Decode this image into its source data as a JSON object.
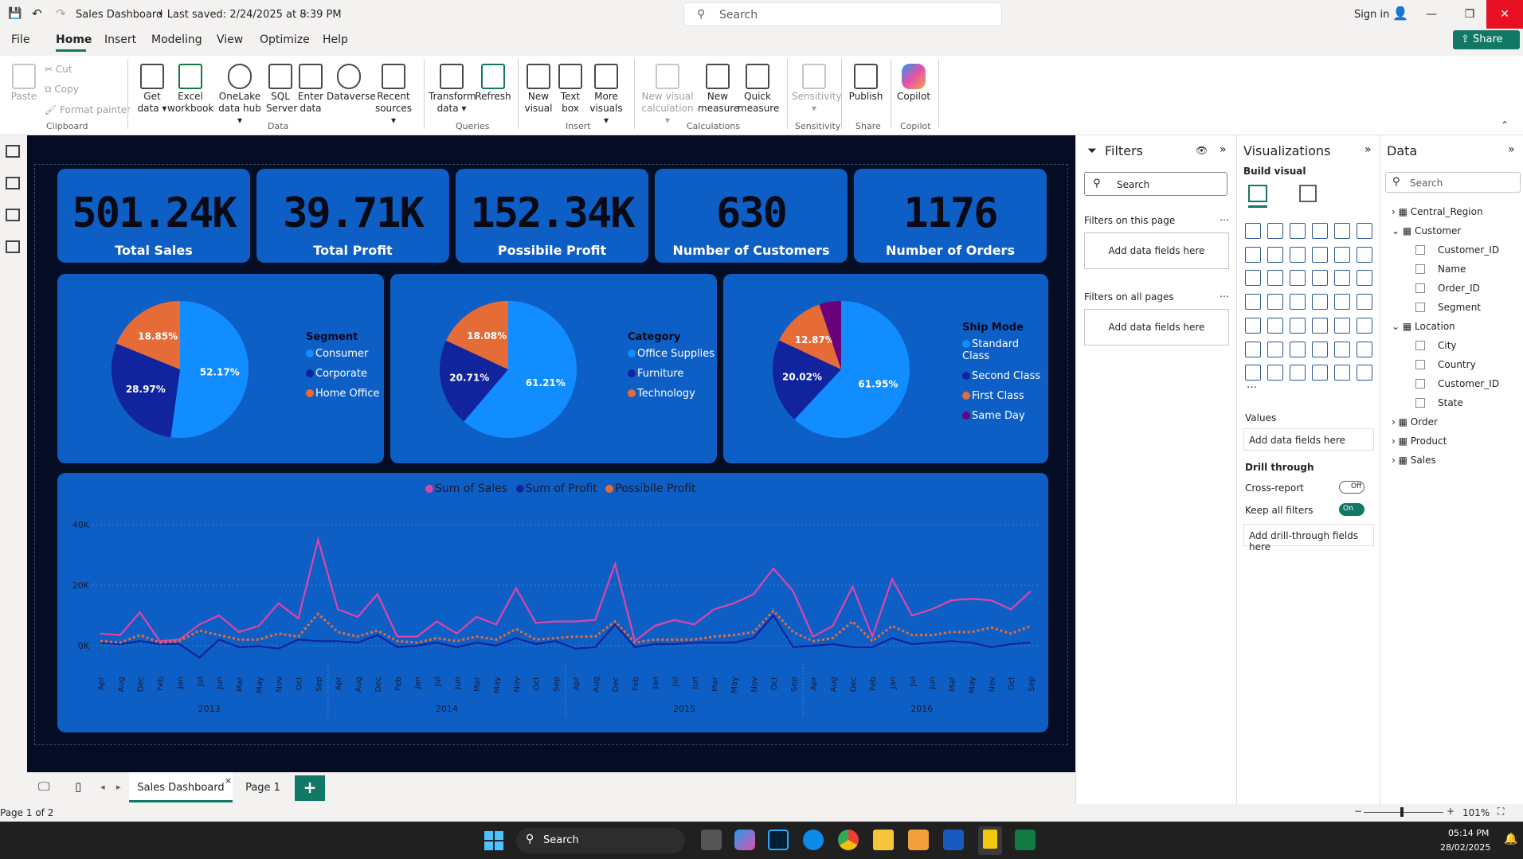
{
  "titlebar": {
    "doc_title": "Sales Dashboard",
    "saved": "• Last saved: 2/24/2025 at 8:39 PM",
    "search_placeholder": "Search",
    "signin": "Sign in",
    "share": "Share"
  },
  "menu": [
    "File",
    "Home",
    "Insert",
    "Modeling",
    "View",
    "Optimize",
    "Help"
  ],
  "ribbon": {
    "clipboard": {
      "paste": "Paste",
      "cut": "Cut",
      "copy": "Copy",
      "format_painter": "Format painter",
      "group": "Clipboard"
    },
    "data": {
      "get_data": "Get data ▾",
      "excel": "Excel workbook",
      "onelake": "OneLake data hub ▾",
      "sql": "SQL Server",
      "enter": "Enter data",
      "dataverse": "Dataverse",
      "recent": "Recent sources ▾",
      "group": "Data"
    },
    "queries": {
      "transform": "Transform data ▾",
      "refresh": "Refresh",
      "group": "Queries"
    },
    "insert": {
      "new_visual": "New visual",
      "text_box": "Text box",
      "more_visuals": "More visuals ▾",
      "group": "Insert"
    },
    "calc": {
      "new_visual_calc": "New visual calculation ▾",
      "new_measure": "New measure",
      "quick_measure": "Quick measure",
      "group": "Calculations"
    },
    "sensitivity": {
      "label": "Sensitivity ▾",
      "group": "Sensitivity"
    },
    "share": {
      "publish": "Publish",
      "group": "Share"
    },
    "copilot": {
      "label": "Copilot",
      "group": "Copilot"
    }
  },
  "kpis": [
    {
      "value": "501.24K",
      "label": "Total Sales"
    },
    {
      "value": "39.71K",
      "label": "Total Profit"
    },
    {
      "value": "152.34K",
      "label": "Possibile Profit"
    },
    {
      "value": "630",
      "label": "Number of Customers"
    },
    {
      "value": "1176",
      "label": "Number of Orders"
    }
  ],
  "colors": {
    "blue": "#118dff",
    "navy": "#12239e",
    "orange": "#e66c37",
    "purple": "#6b007b",
    "pink": "#e044a7"
  },
  "pies": [
    {
      "title": "Segment",
      "slices": [
        {
          "name": "Consumer",
          "value": 52.17,
          "label": "52.17%",
          "color": "#118dff"
        },
        {
          "name": "Corporate",
          "value": 28.97,
          "label": "28.97%",
          "color": "#12239e"
        },
        {
          "name": "Home Office",
          "value": 18.85,
          "label": "18.85%",
          "color": "#e66c37"
        }
      ]
    },
    {
      "title": "Category",
      "slices": [
        {
          "name": "Office Supplies",
          "value": 61.21,
          "label": "61.21%",
          "color": "#118dff"
        },
        {
          "name": "Furniture",
          "value": 20.71,
          "label": "20.71%",
          "color": "#12239e"
        },
        {
          "name": "Technology",
          "value": 18.08,
          "label": "18.08%",
          "color": "#e66c37"
        }
      ]
    },
    {
      "title": "Ship Mode",
      "slices": [
        {
          "name": "Standard Class",
          "value": 61.95,
          "label": "61.95%",
          "color": "#118dff"
        },
        {
          "name": "Second Class",
          "value": 20.02,
          "label": "20.02%",
          "color": "#12239e"
        },
        {
          "name": "First Class",
          "value": 12.87,
          "label": "12.87%",
          "color": "#e66c37"
        },
        {
          "name": "Same Day",
          "value": 5.16,
          "label": "",
          "color": "#6b007b"
        }
      ]
    }
  ],
  "chart_data": {
    "type": "line",
    "legend": [
      "Sum of Sales",
      "Sum of Profit",
      "Possibile Profit"
    ],
    "y_ticks": [
      "40K",
      "20K",
      "0K"
    ],
    "ylim": [
      -5000,
      45000
    ],
    "grid": true,
    "legend_position": "top-center",
    "years": [
      "2013",
      "2014",
      "2015",
      "2016"
    ],
    "x": [
      "Apr",
      "Aug",
      "Dec",
      "Feb",
      "Jan",
      "Jul",
      "Jun",
      "Mar",
      "May",
      "Nov",
      "Oct",
      "Sep",
      "Apr",
      "Aug",
      "Dec",
      "Feb",
      "Jan",
      "Jul",
      "Jun",
      "Mar",
      "May",
      "Nov",
      "Oct",
      "Sep",
      "Apr",
      "Aug",
      "Dec",
      "Feb",
      "Jan",
      "Jul",
      "Jun",
      "Mar",
      "May",
      "Nov",
      "Oct",
      "Sep",
      "Apr",
      "Aug",
      "Dec",
      "Feb",
      "Jan",
      "Jul",
      "Jun",
      "Mar",
      "May",
      "Nov",
      "Oct",
      "Sep"
    ],
    "series": [
      {
        "name": "Sum of Sales",
        "color": "#e044a7",
        "values": [
          4000,
          3500,
          11000,
          1500,
          2000,
          7000,
          10000,
          4500,
          6500,
          14000,
          9000,
          35000,
          12000,
          9500,
          17000,
          3000,
          3000,
          8000,
          4000,
          9500,
          7000,
          19000,
          7500,
          8000,
          8000,
          8500,
          27000,
          1500,
          6500,
          8500,
          7000,
          12000,
          14000,
          17000,
          25500,
          18000,
          3000,
          6500,
          19500,
          3000,
          22000,
          10000,
          12000,
          15000,
          15500,
          15000,
          12000,
          18000
        ]
      },
      {
        "name": "Sum of Profit",
        "color": "#12239e",
        "values": [
          1000,
          500,
          1500,
          500,
          500,
          -4000,
          2000,
          -500,
          -200,
          -1000,
          2000,
          1500,
          1500,
          1000,
          3500,
          -500,
          0,
          1000,
          -500,
          1000,
          0,
          2500,
          500,
          1500,
          -1000,
          -500,
          7000,
          -500,
          500,
          500,
          1000,
          1000,
          1000,
          2500,
          10000,
          -500,
          0,
          500,
          -500,
          -500,
          2500,
          500,
          1000,
          1500,
          1000,
          -500,
          500,
          1000
        ]
      },
      {
        "name": "Possibile Profit",
        "color": "#e66c37",
        "values": [
          1500,
          1000,
          3500,
          1000,
          1500,
          5000,
          3500,
          2000,
          2000,
          4000,
          3000,
          10500,
          4500,
          3000,
          5000,
          1500,
          1000,
          2500,
          1500,
          3000,
          2000,
          5500,
          2000,
          2500,
          3000,
          3000,
          8000,
          1000,
          2000,
          2000,
          2000,
          3000,
          3500,
          4500,
          11500,
          4500,
          1500,
          2500,
          8000,
          1500,
          6500,
          3500,
          3500,
          4500,
          4500,
          6000,
          4000,
          6500
        ]
      }
    ]
  },
  "pagetabs": {
    "tab1": "Sales Dashboard",
    "tab2": "Page 1",
    "add": "+"
  },
  "status": {
    "page": "Page 1 of 2",
    "zoom": "101%"
  },
  "filters": {
    "title": "Filters",
    "search": "Search",
    "on_page": "Filters on this page",
    "add1": "Add data fields here",
    "all_pages": "Filters on all pages",
    "add2": "Add data fields here"
  },
  "viz": {
    "title": "Visualizations",
    "build": "Build visual",
    "values": "Values",
    "add_values": "Add data fields here",
    "drill": "Drill through",
    "cross": "Cross-report",
    "cross_state": "Off",
    "keep": "Keep all filters",
    "keep_state": "On",
    "add_drill": "Add drill-through fields here"
  },
  "data_pane": {
    "title": "Data",
    "search": "Search",
    "tables": [
      {
        "name": "Central_Region",
        "expanded": false,
        "fields": []
      },
      {
        "name": "Customer",
        "expanded": true,
        "fields": [
          "Customer_ID",
          "Name",
          "Order_ID",
          "Segment"
        ]
      },
      {
        "name": "Location",
        "expanded": true,
        "fields": [
          "City",
          "Country",
          "Customer_ID",
          "State"
        ]
      },
      {
        "name": "Order",
        "expanded": false,
        "fields": []
      },
      {
        "name": "Product",
        "expanded": false,
        "fields": []
      },
      {
        "name": "Sales",
        "expanded": false,
        "fields": []
      }
    ]
  },
  "taskbar": {
    "search": "Search",
    "time": "05:14 PM",
    "date": "28/02/2025"
  }
}
